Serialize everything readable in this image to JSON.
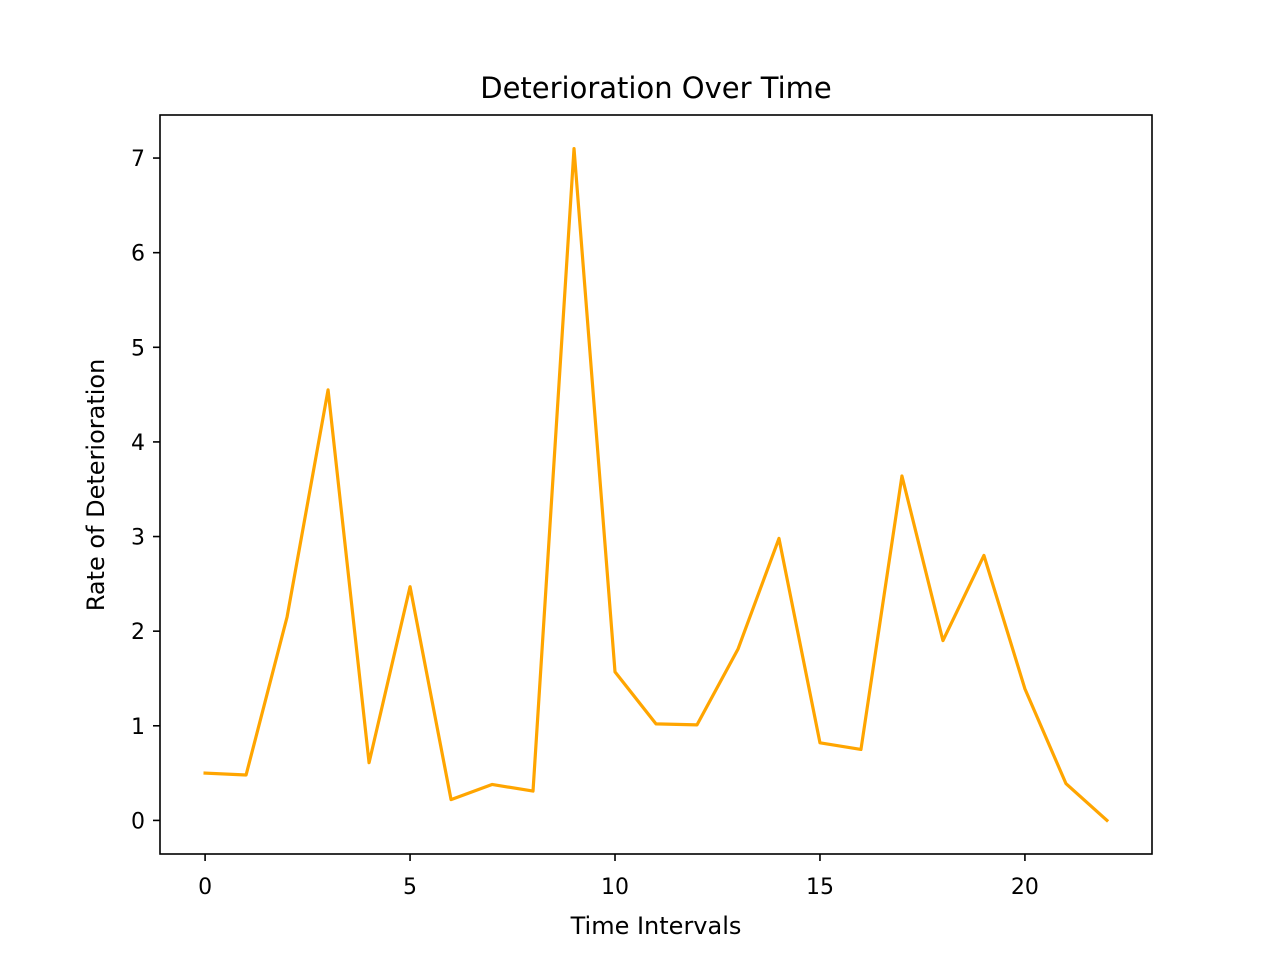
{
  "chart_data": {
    "type": "line",
    "title": "Deterioration Over Time",
    "xlabel": "Time Intervals",
    "ylabel": "Rate of Deterioration",
    "xlim": [
      -1.1,
      23.1
    ],
    "ylim": [
      -0.355,
      7.455
    ],
    "xticks": [
      0,
      5,
      10,
      15,
      20
    ],
    "xtick_labels": [
      "0",
      "5",
      "10",
      "15",
      "20"
    ],
    "yticks": [
      0,
      1,
      2,
      3,
      4,
      5,
      6,
      7
    ],
    "ytick_labels": [
      "0",
      "1",
      "2",
      "3",
      "4",
      "5",
      "6",
      "7"
    ],
    "grid": false,
    "legend": "none",
    "series": [
      {
        "color": "#ffa500",
        "x": [
          0,
          1,
          2,
          3,
          4,
          5,
          6,
          7,
          8,
          9,
          10,
          11,
          12,
          13,
          14,
          15,
          16,
          17,
          18,
          19,
          20,
          21,
          22
        ],
        "values": [
          0.5,
          0.48,
          2.15,
          4.55,
          0.61,
          2.47,
          0.22,
          0.38,
          0.31,
          7.1,
          1.57,
          1.02,
          1.01,
          1.81,
          2.98,
          0.82,
          0.75,
          3.64,
          1.9,
          2.8,
          1.39,
          0.39,
          0.0
        ]
      }
    ]
  }
}
